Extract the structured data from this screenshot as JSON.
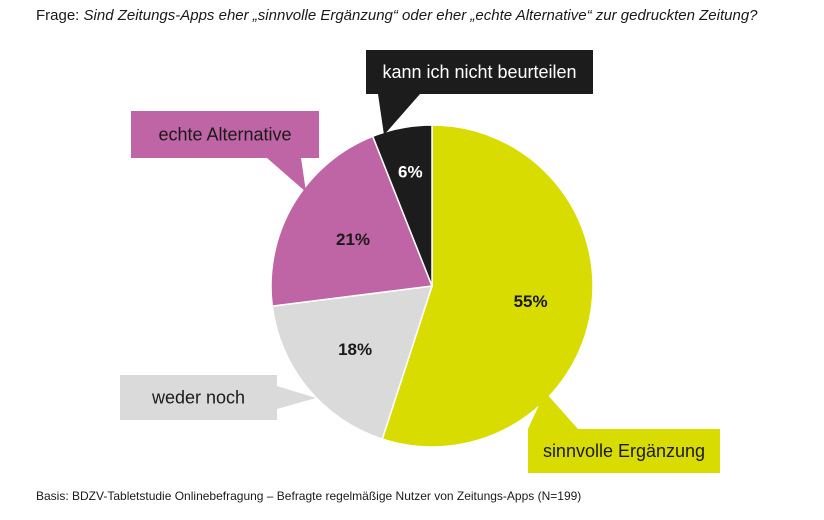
{
  "header": {
    "prefix": "Frage:",
    "question": "Sind Zeitungs-Apps eher „sinnvolle Ergänzung“ oder eher „echte Alternative“ zur gedruckten Zeitung?"
  },
  "footer": {
    "source": "Basis: BDZV-Tabletstudie Onlinebefragung – Befragte regelmäßige Nutzer von Zeitungs-Apps (N=199)"
  },
  "chart_data": {
    "type": "pie",
    "title": "Frage: Sind Zeitungs-Apps eher „sinnvolle Ergänzung“ oder eher „echte Alternative“ zur gedruckten Zeitung?",
    "slices": [
      {
        "label": "sinnvolle Ergänzung",
        "value": 55,
        "value_label": "55%",
        "color": "#d9dc00",
        "label_bg": "#d9dc00",
        "label_color": "#1a1a1a",
        "pct_color": "#1a1a1a"
      },
      {
        "label": "weder noch",
        "value": 18,
        "value_label": "18%",
        "color": "#dadada",
        "label_bg": "#dadada",
        "label_color": "#1a1a1a",
        "pct_color": "#1a1a1a"
      },
      {
        "label": "echte Alternative",
        "value": 21,
        "value_label": "21%",
        "color": "#bf64a5",
        "label_bg": "#bf64a5",
        "label_color": "#1a1a1a",
        "pct_color": "#1a1a1a"
      },
      {
        "label": "kann ich nicht beurteilen",
        "value": 6,
        "value_label": "6%",
        "color": "#1c1c1c",
        "label_bg": "#1c1c1c",
        "label_color": "#ffffff",
        "pct_color": "#ffffff"
      }
    ],
    "start": "12 o'clock",
    "direction": "clockwise"
  }
}
